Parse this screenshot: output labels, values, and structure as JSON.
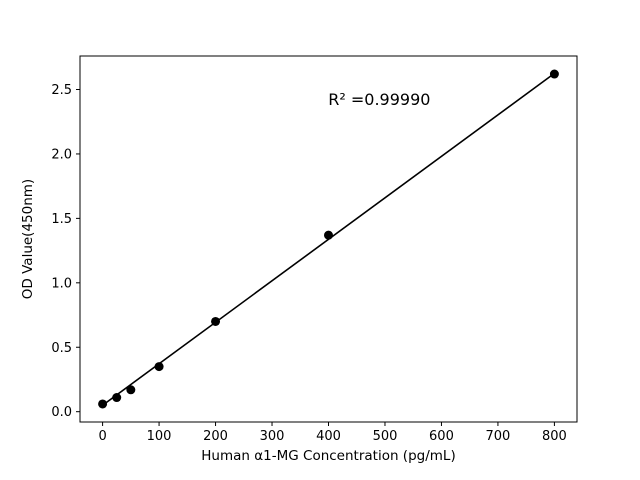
{
  "chart_data": {
    "type": "scatter",
    "title": "",
    "xlabel": "Human α1-MG Concentration (pg/mL)",
    "ylabel": "OD Value(450nm)",
    "x": [
      0,
      25,
      50,
      100,
      200,
      400,
      800
    ],
    "y": [
      0.06,
      0.11,
      0.17,
      0.35,
      0.7,
      1.37,
      2.62
    ],
    "fit_line": {
      "x": [
        0,
        800
      ],
      "y": [
        0.05,
        2.625
      ]
    },
    "annotation": {
      "text": "R² =0.99990",
      "x": 490,
      "y": 2.38
    },
    "xticks": {
      "values": [
        0,
        100,
        200,
        300,
        400,
        500,
        600,
        700,
        800
      ],
      "labels": [
        "0",
        "100",
        "200",
        "300",
        "400",
        "500",
        "600",
        "700",
        "800"
      ]
    },
    "yticks": {
      "values": [
        0.0,
        0.5,
        1.0,
        1.5,
        2.0,
        2.5
      ],
      "labels": [
        "0.0",
        "0.5",
        "1.0",
        "1.5",
        "2.0",
        "2.5"
      ]
    },
    "xlim": [
      -40,
      840
    ],
    "ylim": [
      -0.08,
      2.76
    ],
    "grid": false,
    "legend": "none",
    "marker_color": "#000000",
    "line_color": "#000000",
    "frame_color": "#000000",
    "background": "#ffffff"
  }
}
